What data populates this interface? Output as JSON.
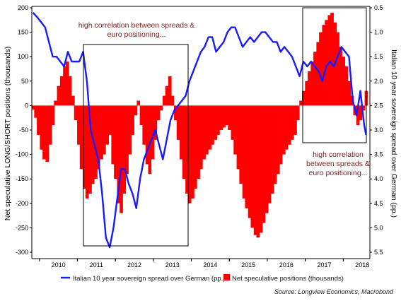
{
  "chart_data": {
    "type": "bar",
    "y_left_label": "Net speculative LONG/SHORT positions (thousands)",
    "y_right_label": "Italian 10 year sovereign spread over German (pp.)",
    "y_left_range": [
      -300,
      200
    ],
    "y_left_ticks": [
      "200",
      "150",
      "100",
      "50",
      "0",
      "-50",
      "-100",
      "-150",
      "-200",
      "-250",
      "-300"
    ],
    "y_right_range": [
      0.5,
      5.5
    ],
    "y_right_inverted": true,
    "y_right_ticks": [
      "0.5",
      "1.0",
      "1.5",
      "2.0",
      "2.5",
      "3.0",
      "3.5",
      "4.0",
      "4.5",
      "5.0",
      "5.5"
    ],
    "x_range": [
      2009.8,
      2018.7
    ],
    "x_tick_labels": [
      "2010",
      "2011",
      "2012",
      "2013",
      "2014",
      "2015",
      "2016",
      "2017",
      "2018"
    ],
    "annotations": [
      {
        "lines": [
          "high correlation between spreads &",
          "euro positioning..."
        ]
      },
      {
        "lines": [
          "high correlation",
          "between spreads &",
          "euro positioning..."
        ]
      }
    ],
    "series": [
      {
        "name": "Net speculative positions (thousands)",
        "kind": "bar",
        "color": "#ff0000",
        "x": [
          2009.83,
          2009.9,
          2009.97,
          2010.05,
          2010.12,
          2010.2,
          2010.28,
          2010.35,
          2010.42,
          2010.5,
          2010.58,
          2010.66,
          2010.73,
          2010.8,
          2010.88,
          2010.95,
          2011.03,
          2011.1,
          2011.18,
          2011.25,
          2011.33,
          2011.4,
          2011.48,
          2011.55,
          2011.63,
          2011.7,
          2011.78,
          2011.85,
          2011.93,
          2012.0,
          2012.08,
          2012.15,
          2012.23,
          2012.3,
          2012.38,
          2012.45,
          2012.53,
          2012.6,
          2012.68,
          2012.75,
          2012.83,
          2012.9,
          2012.98,
          2013.05,
          2013.13,
          2013.2,
          2013.28,
          2013.35,
          2013.43,
          2013.5,
          2013.58,
          2013.65,
          2013.73,
          2013.8,
          2013.88,
          2013.95,
          2014.03,
          2014.1,
          2014.18,
          2014.25,
          2014.33,
          2014.4,
          2014.48,
          2014.55,
          2014.63,
          2014.7,
          2014.78,
          2014.85,
          2014.93,
          2015.0,
          2015.08,
          2015.15,
          2015.23,
          2015.3,
          2015.38,
          2015.45,
          2015.53,
          2015.6,
          2015.68,
          2015.75,
          2015.83,
          2015.9,
          2015.98,
          2016.05,
          2016.13,
          2016.2,
          2016.28,
          2016.35,
          2016.43,
          2016.5,
          2016.58,
          2016.65,
          2016.73,
          2016.8,
          2016.88,
          2016.95,
          2017.03,
          2017.1,
          2017.18,
          2017.25,
          2017.33,
          2017.4,
          2017.48,
          2017.55,
          2017.63,
          2017.7,
          2017.78,
          2017.85,
          2017.93,
          2018.0,
          2018.08,
          2018.15,
          2018.23,
          2018.3,
          2018.38,
          2018.45,
          2018.53,
          2018.6
        ],
        "values": [
          -8,
          -25,
          -60,
          -90,
          -110,
          -115,
          -80,
          -40,
          10,
          40,
          60,
          80,
          90,
          60,
          20,
          -30,
          -80,
          -130,
          -170,
          -190,
          -180,
          -160,
          -150,
          -130,
          -110,
          -100,
          -80,
          -60,
          -120,
          -150,
          -200,
          -220,
          -180,
          -140,
          -100,
          -60,
          -20,
          10,
          -40,
          -80,
          -120,
          -140,
          -110,
          -70,
          -30,
          -10,
          20,
          40,
          60,
          20,
          -30,
          -70,
          -110,
          -150,
          -180,
          -200,
          -190,
          -170,
          -150,
          -130,
          -110,
          -100,
          -90,
          -80,
          -70,
          -60,
          -50,
          -45,
          -40,
          -50,
          -70,
          -100,
          -130,
          -160,
          -190,
          -210,
          -230,
          -250,
          -265,
          -270,
          -260,
          -240,
          -220,
          -200,
          -180,
          -160,
          -140,
          -120,
          -100,
          -90,
          -80,
          -70,
          -60,
          -30,
          10,
          30,
          50,
          70,
          90,
          110,
          130,
          150,
          165,
          175,
          185,
          190,
          170,
          150,
          120,
          100,
          80,
          50,
          20,
          -20,
          -40,
          -30,
          -10,
          30
        ],
        "y_axis": "left"
      },
      {
        "name": "Italian 10 year sovereign spread over German (pp.)",
        "kind": "line",
        "color": "#1a1aff",
        "x": [
          2009.83,
          2009.95,
          2010.05,
          2010.15,
          2010.25,
          2010.35,
          2010.45,
          2010.55,
          2010.65,
          2010.75,
          2010.85,
          2010.95,
          2011.05,
          2011.15,
          2011.25,
          2011.35,
          2011.45,
          2011.55,
          2011.65,
          2011.75,
          2011.85,
          2011.95,
          2012.05,
          2012.15,
          2012.25,
          2012.35,
          2012.45,
          2012.55,
          2012.65,
          2012.75,
          2012.85,
          2012.95,
          2013.05,
          2013.15,
          2013.25,
          2013.35,
          2013.45,
          2013.55,
          2013.65,
          2013.75,
          2013.85,
          2013.95,
          2014.05,
          2014.15,
          2014.25,
          2014.35,
          2014.45,
          2014.55,
          2014.65,
          2014.75,
          2014.85,
          2014.95,
          2015.05,
          2015.15,
          2015.25,
          2015.35,
          2015.45,
          2015.55,
          2015.65,
          2015.75,
          2015.85,
          2015.95,
          2016.05,
          2016.15,
          2016.25,
          2016.35,
          2016.45,
          2016.55,
          2016.65,
          2016.75,
          2016.85,
          2016.95,
          2017.05,
          2017.15,
          2017.25,
          2017.35,
          2017.45,
          2017.55,
          2017.65,
          2017.75,
          2017.85,
          2017.95,
          2018.05,
          2018.15,
          2018.25,
          2018.35,
          2018.45,
          2018.55,
          2018.6
        ],
        "values": [
          0.6,
          0.7,
          0.8,
          0.9,
          1.2,
          1.5,
          1.5,
          1.6,
          1.7,
          1.4,
          1.6,
          1.6,
          1.6,
          1.4,
          2.0,
          3.0,
          3.3,
          3.6,
          4.3,
          5.2,
          5.4,
          5.0,
          4.4,
          3.8,
          3.8,
          4.1,
          4.3,
          4.6,
          4.0,
          3.6,
          3.4,
          3.2,
          3.0,
          3.3,
          3.6,
          3.2,
          2.8,
          2.6,
          2.5,
          2.4,
          2.3,
          2.0,
          1.8,
          1.6,
          1.4,
          1.3,
          1.1,
          1.1,
          1.4,
          1.3,
          1.2,
          1.0,
          0.9,
          0.9,
          1.1,
          1.3,
          1.2,
          1.1,
          1.2,
          1.1,
          1.0,
          1.0,
          1.1,
          1.2,
          1.2,
          1.4,
          1.3,
          1.4,
          1.5,
          1.7,
          1.9,
          1.6,
          1.7,
          1.6,
          1.7,
          1.8,
          2.0,
          1.7,
          1.6,
          1.7,
          1.5,
          1.3,
          1.4,
          1.5,
          2.4,
          2.7,
          2.2,
          2.9,
          3.1
        ],
        "y_axis": "right"
      }
    ]
  },
  "source_label": "Source: Longview Economics, Macrobond"
}
